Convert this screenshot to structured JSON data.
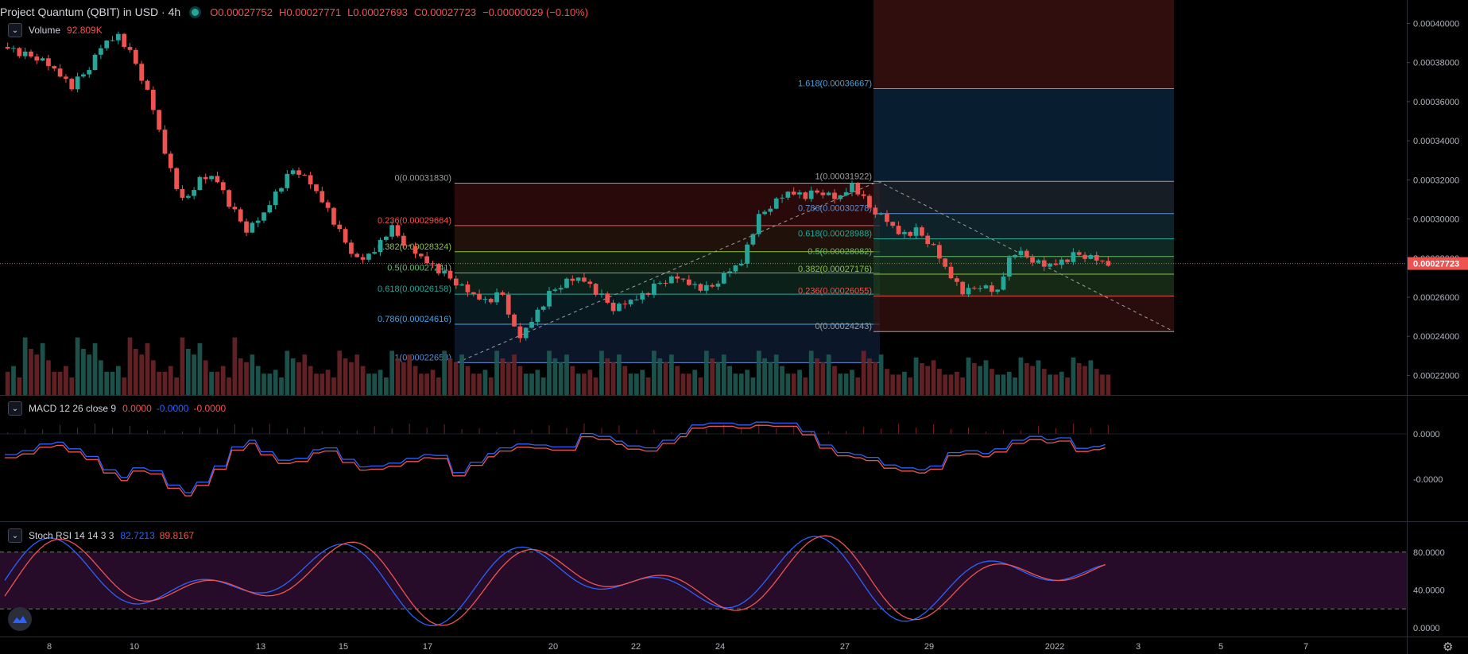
{
  "header": {
    "title": "Project Quantum (QBIT) in USD · 4h",
    "open": "O0.00027752",
    "high": "H0.00027771",
    "low": "L0.00027693",
    "close": "C0.00027723",
    "change": "−0.00000029 (−0.10%)"
  },
  "volume_legend": {
    "label": "Volume",
    "value": "92.809K"
  },
  "macd_legend": {
    "label": "MACD 12 26 close 9",
    "v1": "0.0000",
    "v2": "-0.0000",
    "v3": "-0.0000"
  },
  "stoch_legend": {
    "label": "Stoch RSI 14 14 3 3",
    "k": "82.7213",
    "d": "89.8167"
  },
  "colors": {
    "up": "#26a69a",
    "down": "#ef5350",
    "blue_line": "#2962ff",
    "red_line": "#ef5350",
    "bg": "#000000"
  },
  "chart_data": {
    "type": "candlestick",
    "x_tick_labels": [
      "8",
      "10",
      "13",
      "15",
      "17",
      "20",
      "22",
      "24",
      "27",
      "29",
      "2022",
      "3",
      "5",
      "7"
    ],
    "price_axis": {
      "ylim": [
        0.00021,
        0.000412
      ],
      "ticks": [
        "0.00040000",
        "0.00038000",
        "0.00036000",
        "0.00034000",
        "0.00032000",
        "0.00030000",
        "0.00028000",
        "0.00026000",
        "0.00024000",
        "0.00022000"
      ],
      "ticks_values": [
        0.0004,
        0.00038,
        0.00036,
        0.00034,
        0.00032,
        0.0003,
        0.00028,
        0.00026,
        0.00024,
        0.00022
      ],
      "current_price": "0.00027723",
      "current_price_value": 0.00027723
    },
    "price_path": [
      0.000388,
      0.000384,
      0.000382,
      0.000376,
      0.000368,
      0.000376,
      0.00039,
      0.000394,
      0.00038,
      0.00036,
      0.00033,
      0.000308,
      0.00032,
      0.000322,
      0.000306,
      0.000294,
      0.000302,
      0.000316,
      0.000326,
      0.000318,
      0.000306,
      0.00029,
      0.000278,
      0.000284,
      0.000296,
      0.000286,
      0.00028,
      0.000274,
      0.000268,
      0.000262,
      0.000258,
      0.000262,
      0.000238,
      0.00025,
      0.000262,
      0.000268,
      0.00027,
      0.000262,
      0.000254,
      0.000258,
      0.000262,
      0.000268,
      0.00027,
      0.000266,
      0.000264,
      0.000272,
      0.000278,
      0.0003,
      0.000308,
      0.000314,
      0.000312,
      0.000314,
      0.00031,
      0.000318,
      0.000306,
      0.0003,
      0.000292,
      0.000294,
      0.000286,
      0.000272,
      0.000262,
      0.000266,
      0.000262,
      0.000284,
      0.00028,
      0.000276,
      0.000278,
      0.000282,
      0.00028,
      0.000277
    ],
    "fib_left": {
      "levels": [
        {
          "label": "0(0.00031830)",
          "value": 0.0003183
        },
        {
          "label": "0.236(0.00029664)",
          "value": 0.00029664
        },
        {
          "label": "0.382(0.00028324)",
          "value": 0.00028324
        },
        {
          "label": "0.5(0.00027241)",
          "value": 0.00027241
        },
        {
          "label": "0.618(0.00026158)",
          "value": 0.00026158
        },
        {
          "label": "0.786(0.00024616)",
          "value": 0.00024616
        },
        {
          "label": "1(0.00022653)",
          "value": 0.00022653
        }
      ]
    },
    "fib_right": {
      "levels": [
        {
          "label": "1.618(0.00036667)",
          "value": 0.00036667
        },
        {
          "label": "1(0.00031922)",
          "value": 0.00031922
        },
        {
          "label": "0.786(0.00030278)",
          "value": 0.00030278
        },
        {
          "label": "0.618(0.00028988)",
          "value": 0.00028988
        },
        {
          "label": "0.5(0.00028082)",
          "value": 0.00028082
        },
        {
          "label": "0.382(0.00027176)",
          "value": 0.00027176
        },
        {
          "label": "0.236(0.00026055)",
          "value": 0.00026055
        },
        {
          "label": "0(0.00024243)",
          "value": 0.00024243
        }
      ]
    },
    "macd": {
      "tick_labels": [
        "0.0000",
        "-0.0000"
      ]
    },
    "stoch_rsi": {
      "ylim": [
        0,
        100
      ],
      "tick_labels": [
        "80.0000",
        "40.0000",
        "0.0000"
      ],
      "tick_values": [
        80,
        40,
        0
      ],
      "upper_band": 80,
      "lower_band": 20
    }
  }
}
